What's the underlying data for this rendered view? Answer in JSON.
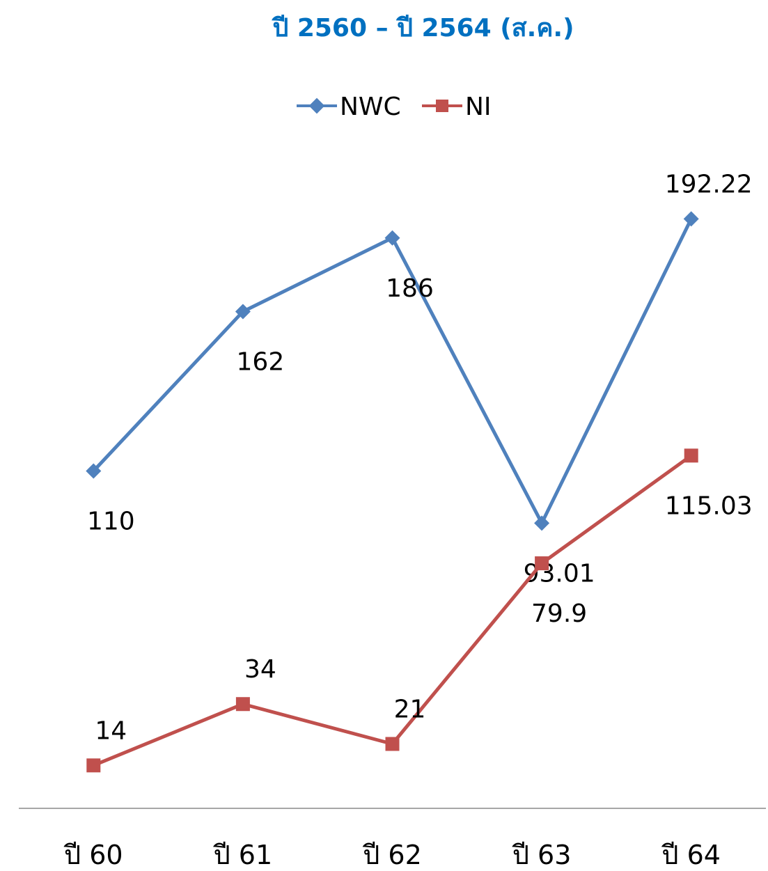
{
  "chart_data": {
    "type": "line",
    "title": "ปี 2560 – ปี 2564 (ส.ค.)",
    "categories": [
      "ปี 60",
      "ปี 61",
      "ปี 62",
      "ปี 63",
      "ปี 64"
    ],
    "series": [
      {
        "name": "NWC",
        "values": [
          110,
          162,
          186,
          93.01,
          192.22
        ],
        "labels": [
          "110",
          "162",
          "186",
          "93.01",
          "192.22"
        ],
        "label_position": [
          "below",
          "below",
          "below",
          "below",
          "above"
        ],
        "color": "#4F81BD",
        "marker": "diamond"
      },
      {
        "name": "NI",
        "values": [
          14,
          34,
          21,
          79.9,
          115.03
        ],
        "labels": [
          "14",
          "34",
          "21",
          "79.9",
          "115.03"
        ],
        "label_position": [
          "above",
          "above",
          "above",
          "below",
          "below"
        ],
        "color": "#C0504D",
        "marker": "square"
      }
    ],
    "title_color": "#0070C0",
    "axis_color": "#A6A6A6",
    "ylim": [
      0,
      220
    ],
    "gridlines": false,
    "legend_position": "top",
    "y_axis_visible": false
  }
}
